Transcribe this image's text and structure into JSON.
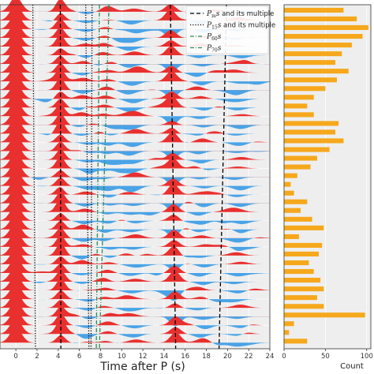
{
  "chart_data": [
    {
      "type": "area",
      "xlabel": "Time after P (s)",
      "ylabel": "",
      "xlim": [
        -1.5,
        24
      ],
      "xticks": [
        0,
        2,
        4,
        6,
        8,
        10,
        12,
        14,
        16,
        18,
        20,
        22,
        24
      ],
      "trace_count": 39,
      "positive_color": "#e8302f",
      "negative_color": "#4aa3e6",
      "background": "#eeeeee",
      "grid": true,
      "legend_position": "top-right",
      "legend": [
        {
          "symbol": "P",
          "sub": "m",
          "suffix": "s",
          "extra": "and its multiple",
          "style": "dashed",
          "color": "#000000"
        },
        {
          "symbol": "P",
          "sub": "15",
          "suffix": "s",
          "extra": "and its multiple",
          "style": "dotted",
          "color": "#000000"
        },
        {
          "symbol": "P",
          "sub": "60",
          "suffix": "s",
          "extra": "",
          "style": "dashdot",
          "color": "#2c8c5a"
        },
        {
          "symbol": "P",
          "sub": "70",
          "suffix": "s",
          "extra": "",
          "style": "dashdot",
          "color": "#2c8c5a"
        }
      ],
      "phase_lines": [
        {
          "name": "Pms",
          "style": "dashed",
          "color": "#000000",
          "t_top": 4.2,
          "t_bottom": 4.25
        },
        {
          "name": "Pms multiple",
          "style": "dashed",
          "color": "#000000",
          "t_top": 14.6,
          "t_bottom": 15.1
        },
        {
          "name": "Pms multiple 2",
          "style": "dashed",
          "color": "#000000",
          "t_top": 19.9,
          "t_bottom": 19.2
        },
        {
          "name": "P15s",
          "style": "dotted",
          "color": "#000000",
          "t_top": 1.6,
          "t_bottom": 1.85
        },
        {
          "name": "P15s multiple",
          "style": "dotted",
          "color": "#000000",
          "t_top": 6.6,
          "t_bottom": 6.9
        },
        {
          "name": "P15s multiple 2",
          "style": "dotted",
          "color": "#000000",
          "t_top": 7.2,
          "t_bottom": 7.1
        },
        {
          "name": "P60s",
          "style": "dashdot",
          "color": "#2c8c5a",
          "t_top": 7.9,
          "t_bottom": 7.6
        },
        {
          "name": "P70s",
          "style": "dashdot",
          "color": "#2c8c5a",
          "t_top": 8.8,
          "t_bottom": 7.9
        }
      ],
      "pulses": [
        {
          "t": 0.0,
          "a": 1.6,
          "w": 0.55
        },
        {
          "t": 4.2,
          "a": 1.05,
          "w": 0.42
        },
        {
          "t": 6.5,
          "a": -0.35,
          "w": 0.6
        },
        {
          "t": 8.6,
          "a": 0.3,
          "w": 0.55
        },
        {
          "t": 11.0,
          "a": -0.4,
          "w": 0.7
        },
        {
          "t": 14.8,
          "a": 0.9,
          "w": 0.5
        },
        {
          "t": 17.5,
          "a": -0.35,
          "w": 0.6
        },
        {
          "t": 21.0,
          "a": -0.3,
          "w": 0.7
        }
      ]
    },
    {
      "type": "bar",
      "orientation": "horizontal",
      "xlabel": "Count",
      "xlim": [
        0,
        105
      ],
      "xticks": [
        0,
        50,
        100
      ],
      "color": "#f6a81c",
      "values": [
        72,
        88,
        102,
        95,
        82,
        70,
        62,
        78,
        64,
        50,
        36,
        28,
        36,
        66,
        62,
        72,
        55,
        40,
        32,
        16,
        8,
        12,
        28,
        20,
        34,
        48,
        18,
        46,
        42,
        30,
        36,
        44,
        48,
        40,
        48,
        98,
        12,
        6,
        28
      ]
    }
  ]
}
